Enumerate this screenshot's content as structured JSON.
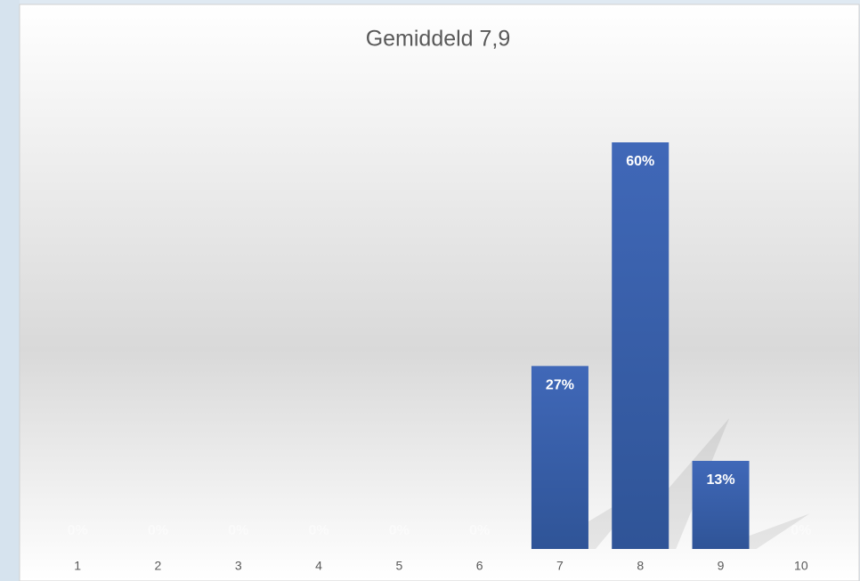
{
  "chart_data": {
    "type": "bar",
    "title": "Gemiddeld 7,9",
    "categories": [
      "1",
      "2",
      "3",
      "4",
      "5",
      "6",
      "7",
      "8",
      "9",
      "10"
    ],
    "values": [
      0,
      0,
      0,
      0,
      0,
      0,
      27,
      60,
      13,
      0
    ],
    "value_labels": [
      "0%",
      "0%",
      "0%",
      "0%",
      "0%",
      "0%",
      "27%",
      "60%",
      "13%",
      "0%"
    ],
    "color": "#3a62b0"
  }
}
